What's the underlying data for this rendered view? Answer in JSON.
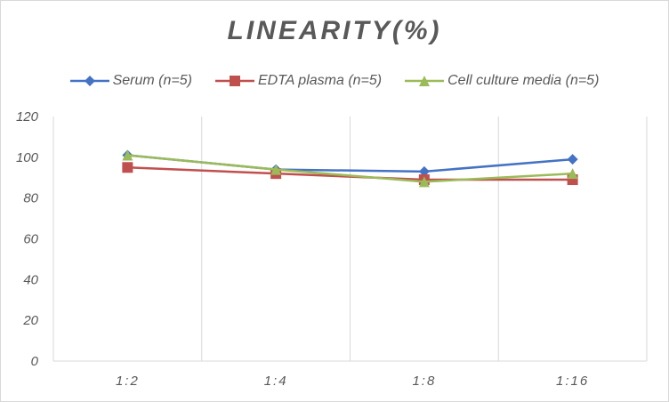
{
  "chart_data": {
    "type": "line",
    "title": "LINEARITY(%)",
    "xlabel": "",
    "ylabel": "",
    "categories": [
      "1:2",
      "1:4",
      "1:8",
      "1:16"
    ],
    "ylim": [
      0,
      120
    ],
    "yticks": [
      0,
      20,
      40,
      60,
      80,
      100,
      120
    ],
    "grid": "vertical",
    "legend_position": "top",
    "series": [
      {
        "name": "Serum (n=5)",
        "values": [
          101,
          94,
          93,
          99
        ],
        "color": "#4472c4",
        "marker": "diamond"
      },
      {
        "name": "EDTA plasma (n=5)",
        "values": [
          95,
          92,
          89,
          89
        ],
        "color": "#c0504d",
        "marker": "square"
      },
      {
        "name": "Cell culture media (n=5)",
        "values": [
          101,
          94,
          88,
          92
        ],
        "color": "#9bbb59",
        "marker": "triangle"
      }
    ]
  }
}
